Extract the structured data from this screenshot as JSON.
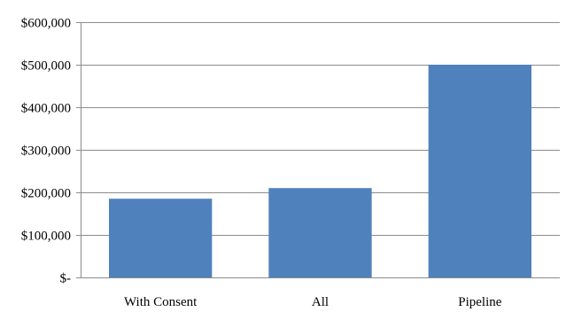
{
  "chart_data": {
    "type": "bar",
    "title": "",
    "xlabel": "",
    "ylabel": "",
    "categories": [
      "With Consent",
      "All",
      "Pipeline"
    ],
    "values": [
      185000,
      210000,
      500000
    ],
    "ylim": [
      0,
      600000
    ],
    "y_ticks": [
      0,
      100000,
      200000,
      300000,
      400000,
      500000,
      600000
    ],
    "y_tick_labels": [
      "$-",
      "$100,000",
      "$200,000",
      "$300,000",
      "$400,000",
      "$500,000",
      "$600,000"
    ],
    "grid": true,
    "legend": "none",
    "bar_color": "#4f81bd",
    "grid_color": "#8c8c8c"
  }
}
